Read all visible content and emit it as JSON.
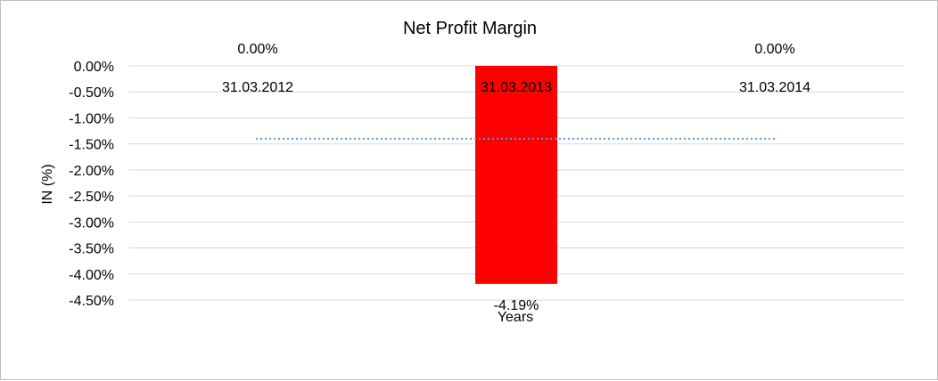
{
  "chart_data": {
    "type": "bar",
    "title": "Net Profit Margin",
    "xlabel": "Years",
    "ylabel": "IN (%)",
    "categories": [
      "31.03.2012",
      "31.03.2013",
      "31.03.2014"
    ],
    "values": [
      0.0,
      -4.19,
      0.0
    ],
    "data_labels": [
      "0.00%",
      "-4.19%",
      "0.00%"
    ],
    "ylim": [
      -4.5,
      0
    ],
    "yticks": [
      0.0,
      -0.5,
      -1.0,
      -1.5,
      -2.0,
      -2.5,
      -3.0,
      -3.5,
      -4.0,
      -4.5
    ],
    "ytick_labels": [
      "0.00%",
      "-0.50%",
      "-1.00%",
      "-1.50%",
      "-2.00%",
      "-2.50%",
      "-3.00%",
      "-3.50%",
      "-4.00%",
      "-4.50%"
    ],
    "trendline": {
      "style": "dotted",
      "values": [
        -1.4,
        -1.4,
        -1.4
      ],
      "color": "#5b9bd5"
    },
    "bar_color": "#ff0000",
    "grid": true,
    "legend": "none"
  }
}
